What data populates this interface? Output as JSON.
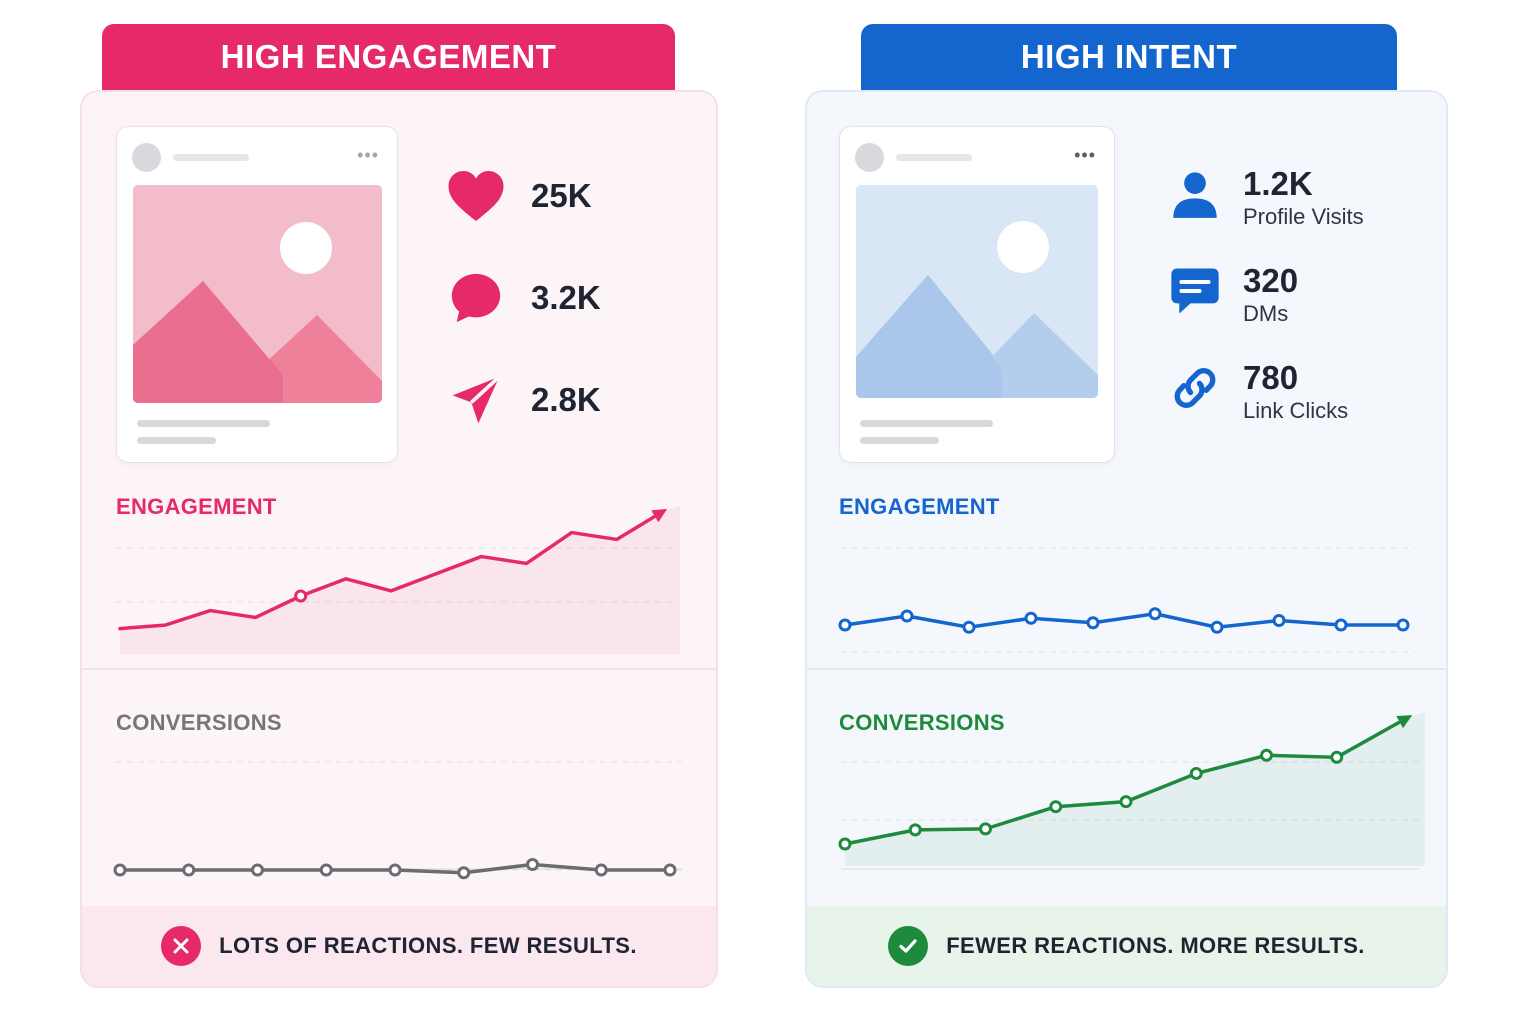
{
  "left": {
    "title": "HIGH ENGAGEMENT",
    "stats": [
      {
        "icon": "heart-icon",
        "value": "25K"
      },
      {
        "icon": "comment-icon",
        "value": "3.2K"
      },
      {
        "icon": "send-icon",
        "value": "2.8K"
      }
    ],
    "engagement_title": "ENGAGEMENT",
    "conversions_title": "CONVERSIONS",
    "footer_text": "LOTS OF REACTIONS. FEW RESULTS.",
    "footer_icon": "x-icon",
    "colors": {
      "accent": "#e52a67",
      "neutral": "#6b6b72"
    }
  },
  "right": {
    "title": "HIGH INTENT",
    "stats": [
      {
        "icon": "user-icon",
        "value": "1.2K",
        "label": "Profile Visits"
      },
      {
        "icon": "message-icon",
        "value": "320",
        "label": "DMs"
      },
      {
        "icon": "link-icon",
        "value": "780",
        "label": "Link Clicks"
      }
    ],
    "engagement_title": "ENGAGEMENT",
    "conversions_title": "CONVERSIONS",
    "footer_text": "FEWER REACTIONS. MORE RESULTS.",
    "footer_icon": "check-icon",
    "colors": {
      "accent": "#1565cf",
      "success": "#1e8a3c"
    }
  },
  "chart_data": [
    {
      "type": "line",
      "panel": "left",
      "name": "engagement",
      "values": [
        4,
        8,
        25,
        17,
        42,
        62,
        48,
        68,
        88,
        80,
        116,
        108,
        140
      ],
      "trend": "up",
      "markers": [
        4
      ]
    },
    {
      "type": "line",
      "panel": "left",
      "name": "conversions",
      "values": [
        8,
        8,
        8,
        8,
        8,
        7,
        10,
        8,
        8
      ],
      "trend": "flat"
    },
    {
      "type": "line",
      "panel": "right",
      "name": "engagement",
      "values": [
        12,
        16,
        11,
        15,
        13,
        17,
        11,
        14,
        12,
        12
      ],
      "trend": "flat"
    },
    {
      "type": "line",
      "panel": "right",
      "name": "conversions",
      "values": [
        0,
        14,
        15,
        37,
        42,
        70,
        88,
        86,
        125
      ],
      "trend": "up"
    }
  ]
}
